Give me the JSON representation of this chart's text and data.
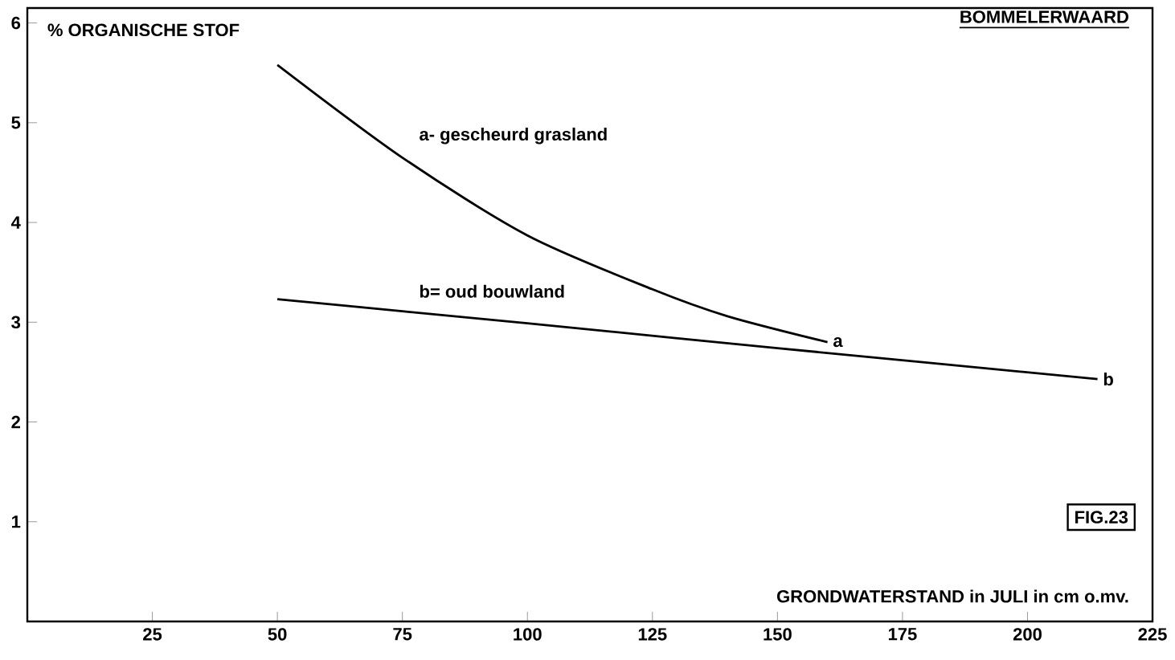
{
  "chart_data": {
    "type": "line",
    "title": "BOMMELERWAARD",
    "xlabel": "GRONDWATERSTAND in JULI in cm o.mv.",
    "ylabel": "% ORGANISCHE STOF",
    "xlim": [
      0,
      225
    ],
    "ylim": [
      0,
      6.15
    ],
    "xticks": [
      25,
      50,
      75,
      100,
      125,
      150,
      175,
      200,
      225
    ],
    "yticks": [
      1,
      2,
      3,
      4,
      5,
      6
    ],
    "marker": "none",
    "line_style": "solid",
    "series": [
      {
        "name": "a- gescheurd grasland",
        "color": "#000000",
        "x": [
          50,
          75,
          100,
          125,
          140,
          160
        ],
        "values": [
          5.58,
          4.65,
          3.87,
          3.33,
          3.06,
          2.8
        ]
      },
      {
        "name": "b= oud bouwland",
        "color": "#000000",
        "x": [
          50,
          75,
          100,
          150,
          214
        ],
        "values": [
          3.23,
          3.11,
          2.99,
          2.74,
          2.43
        ]
      }
    ],
    "annotations": [
      {
        "text": "a",
        "x": 160,
        "y": 2.8
      },
      {
        "text": "b",
        "x": 214,
        "y": 2.43
      },
      "FIG.23"
    ]
  }
}
